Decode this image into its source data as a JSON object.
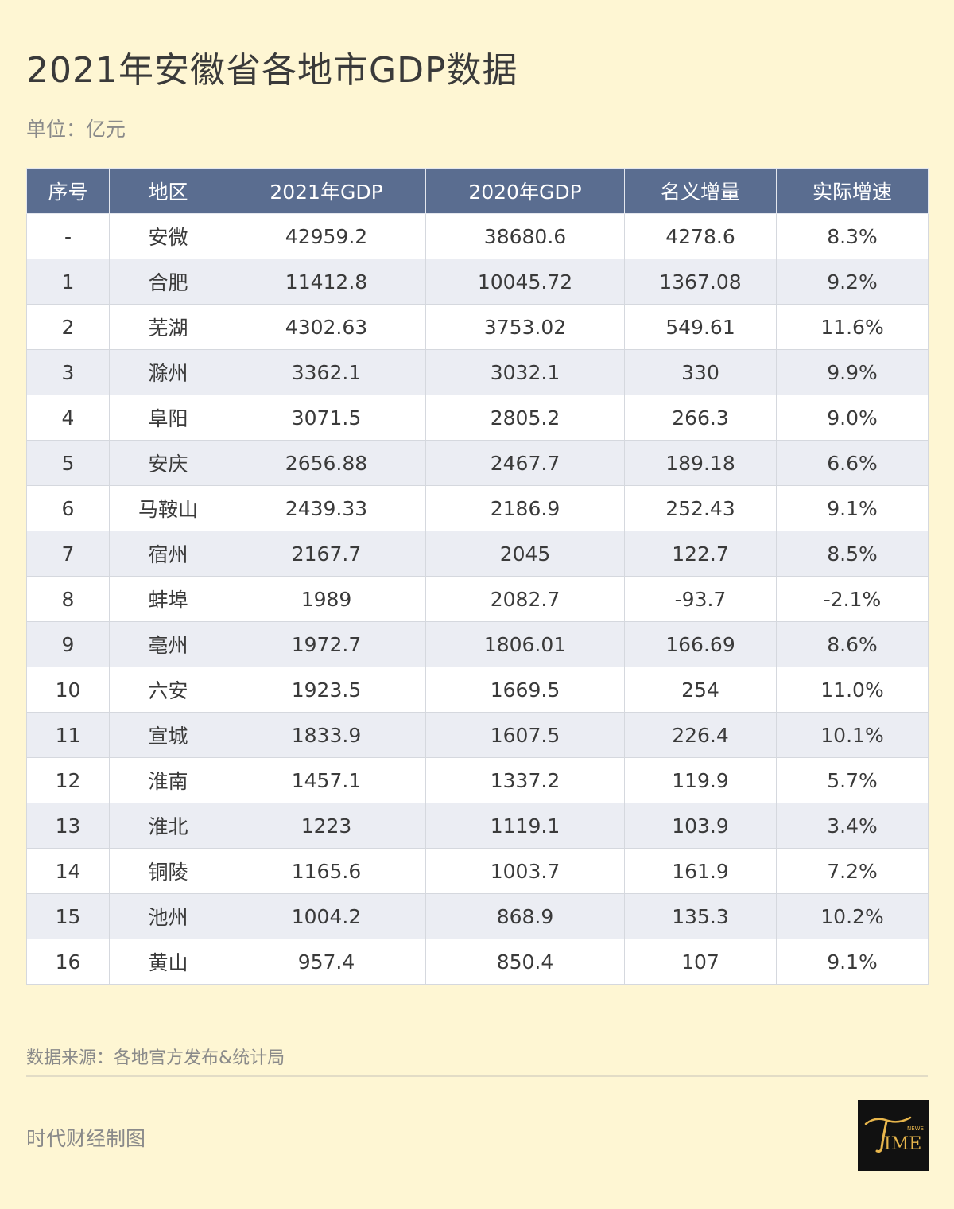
{
  "title": "2021年安徽省各地市GDP数据",
  "unit": "单位：亿元",
  "table": {
    "headers": [
      "序号",
      "地区",
      "2021年GDP",
      "2020年GDP",
      "名义增量",
      "实际增速"
    ],
    "rows": [
      [
        "-",
        "安微",
        "42959.2",
        "38680.6",
        "4278.6",
        "8.3%"
      ],
      [
        "1",
        "合肥",
        "11412.8",
        "10045.72",
        "1367.08",
        "9.2%"
      ],
      [
        "2",
        "芜湖",
        "4302.63",
        "3753.02",
        "549.61",
        "11.6%"
      ],
      [
        "3",
        "滁州",
        "3362.1",
        "3032.1",
        "330",
        "9.9%"
      ],
      [
        "4",
        "阜阳",
        "3071.5",
        "2805.2",
        "266.3",
        "9.0%"
      ],
      [
        "5",
        "安庆",
        "2656.88",
        "2467.7",
        "189.18",
        "6.6%"
      ],
      [
        "6",
        "马鞍山",
        "2439.33",
        "2186.9",
        "252.43",
        "9.1%"
      ],
      [
        "7",
        "宿州",
        "2167.7",
        "2045",
        "122.7",
        "8.5%"
      ],
      [
        "8",
        "蚌埠",
        "1989",
        "2082.7",
        "-93.7",
        "-2.1%"
      ],
      [
        "9",
        "亳州",
        "1972.7",
        "1806.01",
        "166.69",
        "8.6%"
      ],
      [
        "10",
        "六安",
        "1923.5",
        "1669.5",
        "254",
        "11.0%"
      ],
      [
        "11",
        "宣城",
        "1833.9",
        "1607.5",
        "226.4",
        "10.1%"
      ],
      [
        "12",
        "淮南",
        "1457.1",
        "1337.2",
        "119.9",
        "5.7%"
      ],
      [
        "13",
        "淮北",
        "1223",
        "1119.1",
        "103.9",
        "3.4%"
      ],
      [
        "14",
        "铜陵",
        "1165.6",
        "1003.7",
        "161.9",
        "7.2%"
      ],
      [
        "15",
        "池州",
        "1004.2",
        "868.9",
        "135.3",
        "10.2%"
      ],
      [
        "16",
        "黄山",
        "957.4",
        "850.4",
        "107",
        "9.1%"
      ]
    ]
  },
  "source": "数据来源：各地官方发布&统计局",
  "credit": "时代财经制图",
  "logo": {
    "text": "TIME",
    "small_text": "NEWS",
    "icon": "time-news-logo",
    "text_color": "#E8B64C",
    "bg_color": "#111111"
  },
  "colors": {
    "background": "#FEF6D3",
    "header_bg": "#5A6D90",
    "row_alt": "#EBEDF3",
    "row": "#FFFFFF"
  }
}
